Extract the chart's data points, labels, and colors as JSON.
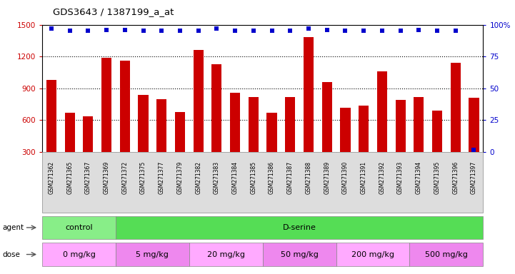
{
  "title": "GDS3643 / 1387199_a_at",
  "samples": [
    "GSM271362",
    "GSM271365",
    "GSM271367",
    "GSM271369",
    "GSM271372",
    "GSM271375",
    "GSM271377",
    "GSM271379",
    "GSM271382",
    "GSM271383",
    "GSM271384",
    "GSM271385",
    "GSM271386",
    "GSM271387",
    "GSM271388",
    "GSM271389",
    "GSM271390",
    "GSM271391",
    "GSM271392",
    "GSM271393",
    "GSM271394",
    "GSM271395",
    "GSM271396",
    "GSM271397"
  ],
  "counts": [
    980,
    670,
    640,
    1190,
    1160,
    840,
    800,
    680,
    1260,
    1130,
    860,
    820,
    670,
    820,
    1380,
    960,
    720,
    740,
    1060,
    790,
    820,
    690,
    1140,
    810
  ],
  "percentiles": [
    97,
    95,
    95,
    96,
    96,
    95,
    95,
    95,
    95,
    97,
    95,
    95,
    95,
    95,
    97,
    96,
    95,
    95,
    95,
    95,
    96,
    95,
    95,
    2
  ],
  "bar_color": "#cc0000",
  "dot_color": "#0000cc",
  "ylim_left": [
    300,
    1500
  ],
  "ylim_right": [
    0,
    100
  ],
  "yticks_left": [
    300,
    600,
    900,
    1200,
    1500
  ],
  "yticks_right": [
    0,
    25,
    50,
    75,
    100
  ],
  "agent_groups": [
    {
      "label": "control",
      "start": 0,
      "end": 3,
      "color": "#88ee88"
    },
    {
      "label": "D-serine",
      "start": 4,
      "end": 23,
      "color": "#55dd55"
    }
  ],
  "dose_groups": [
    {
      "label": "0 mg/kg",
      "start": 0,
      "end": 3,
      "color": "#ffaaff"
    },
    {
      "label": "5 mg/kg",
      "start": 4,
      "end": 7,
      "color": "#ee88ee"
    },
    {
      "label": "20 mg/kg",
      "start": 8,
      "end": 11,
      "color": "#ffaaff"
    },
    {
      "label": "50 mg/kg",
      "start": 12,
      "end": 15,
      "color": "#ee88ee"
    },
    {
      "label": "200 mg/kg",
      "start": 16,
      "end": 19,
      "color": "#ffaaff"
    },
    {
      "label": "500 mg/kg",
      "start": 20,
      "end": 23,
      "color": "#ee88ee"
    }
  ],
  "background_color": "#ffffff",
  "plot_bg_color": "#ffffff",
  "xtick_bg_color": "#dddddd",
  "grid_color": "#000000",
  "left_axis_color": "#cc0000",
  "right_axis_color": "#0000cc",
  "n_samples": 24
}
